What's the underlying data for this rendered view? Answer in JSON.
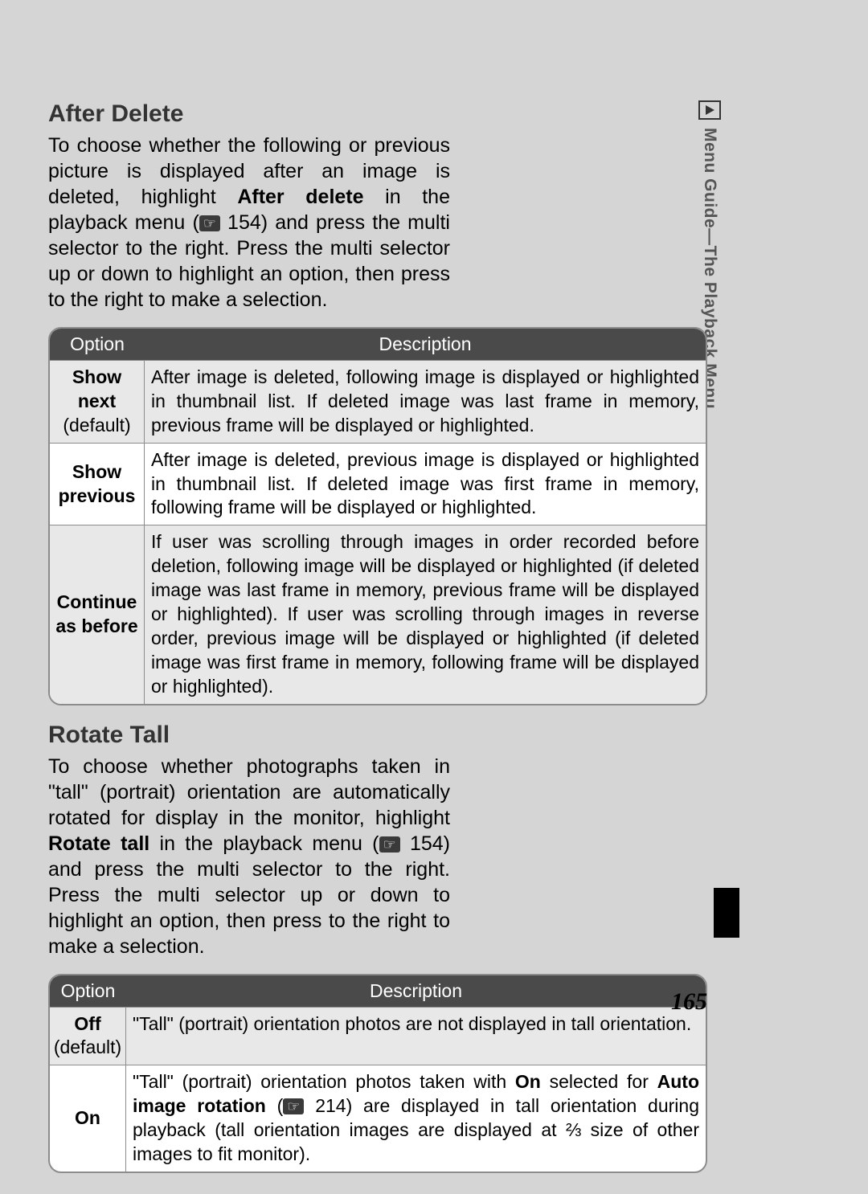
{
  "sidebar": {
    "label": "Menu Guide—The Playback Menu"
  },
  "page_number": "165",
  "section1": {
    "heading": "After Delete",
    "para_pre": "To choose whether the following or previous picture is displayed after an image is deleted, highlight ",
    "para_bold": "After delete",
    "para_mid": " in the playback menu (",
    "ref": "154",
    "para_post": ") and press the multi selector to the right.  Press the multi selector up or down to highlight an option, then press to the right to make a selection."
  },
  "table1": {
    "columns": [
      "Option",
      "Description"
    ],
    "rows": [
      {
        "option_bold": "Show next",
        "option_sub": "(default)",
        "desc": "After image is deleted, following image is displayed or highlighted in thumbnail list.  If deleted image was last frame in memory, previous frame will be displayed or highlighted.",
        "shaded": true
      },
      {
        "option_bold": "Show previous",
        "option_sub": "",
        "desc": "After image is deleted, previous image is displayed or highlighted in thumbnail list.  If deleted image was first frame in memory, following frame will be displayed or highlighted.",
        "shaded": false
      },
      {
        "option_bold": "Continue as before",
        "option_sub": "",
        "desc": "If user was scrolling through images in order recorded before deletion, following image will be displayed or highlighted (if deleted image was last frame in memory, previous frame will be displayed or highlighted). If user was scrolling through images in reverse order, previous image will be displayed or highlighted (if deleted image was first frame in memory, following frame will be displayed or highlighted).",
        "shaded": true
      }
    ]
  },
  "section2": {
    "heading": "Rotate Tall",
    "para_pre": "To choose whether photographs taken in \"tall\" (portrait) orientation are automatically rotated for display in the monitor, highlight ",
    "para_bold": "Rotate tall",
    "para_mid": " in the playback menu (",
    "ref": "154",
    "para_post": ") and press the multi selector to the right.  Press the multi selector up or down to highlight an option, then press to the right to make a selection."
  },
  "table2": {
    "columns": [
      "Option",
      "Description"
    ],
    "rows": [
      {
        "option_bold": "Off",
        "option_sub": "(default)",
        "desc_plain": "\"Tall\" (portrait) orientation photos are not displayed in tall orientation.",
        "shaded": true
      },
      {
        "option_bold": "On",
        "option_sub": "",
        "desc_pre": "\"Tall\" (portrait) orientation photos taken with ",
        "desc_b1": "On",
        "desc_mid1": " selected for ",
        "desc_b2": "Auto image rotation",
        "desc_mid2": " (",
        "ref": "214",
        "desc_post": ") are displayed in tall orientation during playback (tall orientation images are displayed at ⅔ size of other images to fit monitor).",
        "shaded": false
      }
    ]
  }
}
